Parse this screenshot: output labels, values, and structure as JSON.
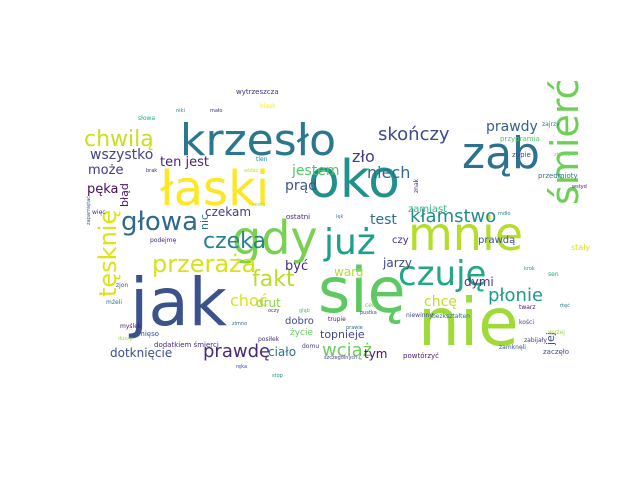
{
  "words": [
    {
      "text": "jak",
      "color": "#3b528b"
    },
    {
      "text": "się",
      "color": "#5ec962"
    },
    {
      "text": "nie",
      "color": "#a0da39"
    },
    {
      "text": "oko",
      "color": "#21918c"
    },
    {
      "text": "łaski",
      "color": "#fde725"
    },
    {
      "text": "krzesło",
      "color": "#2a788e"
    },
    {
      "text": "gdy",
      "color": "#7ad151"
    },
    {
      "text": "mnie",
      "color": "#b5de2b"
    },
    {
      "text": "ząb",
      "color": "#2c728e"
    },
    {
      "text": "śmierć",
      "color": "#6ece58"
    },
    {
      "text": "czuję",
      "color": "#22a884"
    },
    {
      "text": "już",
      "color": "#1f9e89"
    },
    {
      "text": "głowa",
      "color": "#31688e"
    },
    {
      "text": "przeraża",
      "color": "#d8e219"
    },
    {
      "text": "chwilą",
      "color": "#c8e020"
    },
    {
      "text": "czeka",
      "color": "#26828e"
    },
    {
      "text": "tęsknię",
      "color": "#dde318"
    },
    {
      "text": "skończy",
      "color": "#3e4a89"
    },
    {
      "text": "fakt",
      "color": "#b8de29"
    },
    {
      "text": "prawdę",
      "color": "#482878"
    },
    {
      "text": "kłamstwo",
      "color": "#238a8d"
    },
    {
      "text": "płonie",
      "color": "#1f9a8a"
    },
    {
      "text": "wciąż",
      "color": "#6ccd5a"
    },
    {
      "text": "niech",
      "color": "#30698e"
    },
    {
      "text": "wszystko",
      "color": "#414487"
    },
    {
      "text": "prawdy",
      "color": "#34618d"
    },
    {
      "text": "jestem",
      "color": "#52c569"
    },
    {
      "text": "zło",
      "color": "#443a83"
    },
    {
      "text": "ten jest",
      "color": "#481f70"
    },
    {
      "text": "choć",
      "color": "#dae319"
    },
    {
      "text": "chcę",
      "color": "#bddf26"
    },
    {
      "text": "może",
      "color": "#453882"
    },
    {
      "text": "pęka",
      "color": "#460b5e"
    },
    {
      "text": "prąd",
      "color": "#3a548c"
    },
    {
      "text": "ciało",
      "color": "#2d708e"
    },
    {
      "text": "test",
      "color": "#2f6c8e"
    },
    {
      "text": "czekam",
      "color": "#433e85"
    },
    {
      "text": "dotknięcie",
      "color": "#3d4e8a"
    },
    {
      "text": "dymi",
      "color": "#46327e"
    },
    {
      "text": "jarzy",
      "color": "#3f4889"
    },
    {
      "text": "być",
      "color": "#472c7a"
    },
    {
      "text": "drut",
      "color": "#8bd646"
    },
    {
      "text": "warg",
      "color": "#b2dd2d"
    },
    {
      "text": "tym",
      "color": "#471164"
    },
    {
      "text": "topnieje",
      "color": "#404588"
    },
    {
      "text": "zamiast",
      "color": "#35b779"
    },
    {
      "text": "prawdą",
      "color": "#3b518b"
    },
    {
      "text": "czy",
      "color": "#472d7b"
    },
    {
      "text": "nic",
      "color": "#2c738e"
    },
    {
      "text": "błąd",
      "color": "#481668"
    },
    {
      "text": "jej",
      "color": "#3c4f8a"
    },
    {
      "text": "dobro",
      "color": "#3e4989"
    },
    {
      "text": "życie",
      "color": "#67cc5c"
    },
    {
      "text": "przedmioty",
      "color": "#2b758e"
    },
    {
      "text": "zupie",
      "color": "#3f4788"
    },
    {
      "text": "przypramia",
      "color": "#52c569"
    },
    {
      "text": "wytrzeszcza",
      "color": "#46317e"
    },
    {
      "text": "zajrzy",
      "color": "#2a778e"
    },
    {
      "text": "ostatni",
      "color": "#481d6f"
    },
    {
      "text": "tlen",
      "color": "#25848e"
    },
    {
      "text": "znak",
      "color": "#482576"
    },
    {
      "text": "mięso",
      "color": "#3b528b"
    },
    {
      "text": "posiłek",
      "color": "#472e7c"
    },
    {
      "text": "dodatkiem śmierci",
      "color": "#482979"
    },
    {
      "text": "powtórzyć",
      "color": "#481b6d"
    },
    {
      "text": "zamknęli",
      "color": "#3a548c"
    },
    {
      "text": "zaczęło",
      "color": "#3b518b"
    },
    {
      "text": "zabijały",
      "color": "#453781"
    },
    {
      "text": "kości",
      "color": "#3f4788"
    },
    {
      "text": "domu",
      "color": "#424186"
    },
    {
      "text": "niewinny",
      "color": "#3f4889"
    },
    {
      "text": "bezkształten",
      "color": "#2c738e"
    },
    {
      "text": "twarz",
      "color": "#481467"
    },
    {
      "text": "pustka",
      "color": "#3d4d8a"
    },
    {
      "text": "celi",
      "color": "#67cc5c"
    },
    {
      "text": "trupie",
      "color": "#481c6e"
    },
    {
      "text": "szczególnych",
      "color": "#414487"
    },
    {
      "text": "prawie",
      "color": "#2f6b8e"
    },
    {
      "text": "głąb",
      "color": "#4ac16d"
    },
    {
      "text": "oczy",
      "color": "#472c7a"
    },
    {
      "text": "myślek",
      "color": "#4a186c"
    },
    {
      "text": "więc",
      "color": "#46337f"
    },
    {
      "text": "podejmę",
      "color": "#482475"
    },
    {
      "text": "zjon",
      "color": "#38588c"
    },
    {
      "text": "mżeli",
      "color": "#2e6f8e"
    },
    {
      "text": "duszy",
      "color": "#95d840"
    },
    {
      "text": "zapamiętać",
      "color": "#365c8d"
    },
    {
      "text": "brak",
      "color": "#482878"
    },
    {
      "text": "widać",
      "color": "#c2df23"
    },
    {
      "text": "zesta",
      "color": "#aadc32"
    },
    {
      "text": "stały",
      "color": "#dfe318"
    },
    {
      "text": "mało",
      "color": "#46307e"
    },
    {
      "text": "niki",
      "color": "#287c8e"
    },
    {
      "text": "słowa",
      "color": "#25ab82"
    },
    {
      "text": "ziemia",
      "color": "#7fd34e"
    },
    {
      "text": "zimno",
      "color": "#31678e"
    },
    {
      "text": "ręka",
      "color": "#3c508b"
    },
    {
      "text": "stop",
      "color": "#23898e"
    },
    {
      "text": "blask",
      "color": "#fde725"
    },
    {
      "text": "sen",
      "color": "#20a486"
    },
    {
      "text": "rtęć",
      "color": "#2a788e"
    },
    {
      "text": "wyżej",
      "color": "#9bd93c"
    },
    {
      "text": "krok",
      "color": "#1fa088"
    },
    {
      "text": "wstyd",
      "color": "#482071"
    },
    {
      "text": "lęk",
      "color": "#23888e"
    },
    {
      "text": "mdło",
      "color": "#25858e"
    }
  ]
}
